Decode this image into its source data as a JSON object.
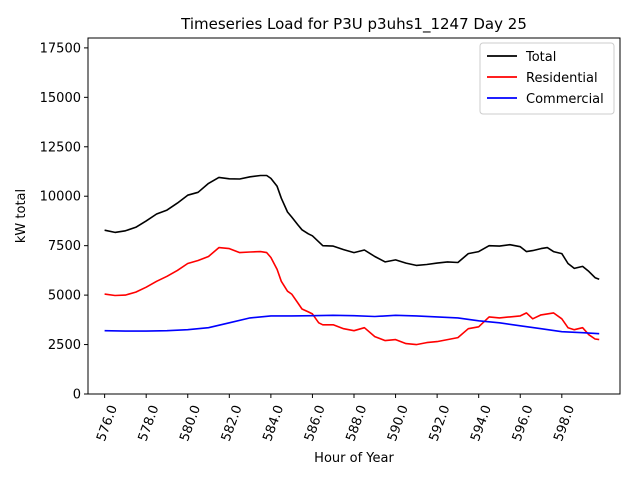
{
  "chart_data": {
    "type": "line",
    "title": "Timeseries Load for P3U p3uhs1_1247  Day 25",
    "xlabel": "Hour of Year",
    "ylabel": "kW total",
    "xlim": [
      575.2,
      600.8
    ],
    "ylim": [
      0,
      18000
    ],
    "xticks": [
      576,
      578,
      580,
      582,
      584,
      586,
      588,
      590,
      592,
      594,
      596,
      598
    ],
    "xtick_labels": [
      "576.0",
      "578.0",
      "580.0",
      "582.0",
      "584.0",
      "586.0",
      "588.0",
      "590.0",
      "592.0",
      "594.0",
      "596.0",
      "598.0"
    ],
    "yticks": [
      0,
      2500,
      5000,
      7500,
      10000,
      12500,
      15000,
      17500
    ],
    "ytick_labels": [
      "0",
      "2500",
      "5000",
      "7500",
      "10000",
      "12500",
      "15000",
      "17500"
    ],
    "grid": false,
    "legend_position": "top-right",
    "series": [
      {
        "name": "Total",
        "color": "#000000",
        "x": [
          576,
          576.5,
          577,
          577.5,
          578,
          578.5,
          579,
          579.5,
          580,
          580.5,
          581,
          581.5,
          582,
          582.5,
          583,
          583.5,
          583.8,
          584,
          584.3,
          584.5,
          584.8,
          585,
          585.3,
          585.5,
          585.8,
          586,
          586.5,
          587,
          587.5,
          588,
          588.5,
          589,
          589.5,
          590,
          590.5,
          591,
          591.5,
          592,
          592.5,
          593,
          593.5,
          594,
          594.5,
          595,
          595.5,
          596,
          596.3,
          596.6,
          597,
          597.3,
          597.6,
          598,
          598.3,
          598.6,
          599,
          599.3,
          599.6,
          599.8
        ],
        "y": [
          8280,
          8170,
          8250,
          8430,
          8750,
          9100,
          9300,
          9650,
          10050,
          10200,
          10650,
          10950,
          10880,
          10870,
          10980,
          11050,
          11050,
          10900,
          10500,
          9900,
          9200,
          8950,
          8550,
          8300,
          8100,
          8000,
          7500,
          7480,
          7300,
          7150,
          7280,
          6950,
          6680,
          6780,
          6620,
          6500,
          6550,
          6620,
          6680,
          6650,
          7100,
          7200,
          7500,
          7480,
          7550,
          7450,
          7200,
          7250,
          7350,
          7400,
          7200,
          7100,
          6600,
          6350,
          6450,
          6200,
          5880,
          5800
        ]
      },
      {
        "name": "Residential",
        "color": "#ff0000",
        "x": [
          576,
          576.5,
          577,
          577.5,
          578,
          578.5,
          579,
          579.5,
          580,
          580.5,
          581,
          581.5,
          582,
          582.5,
          583,
          583.5,
          583.8,
          584,
          584.3,
          584.5,
          584.8,
          585,
          585.3,
          585.5,
          585.8,
          586,
          586.3,
          586.5,
          587,
          587.5,
          588,
          588.5,
          589,
          589.5,
          590,
          590.5,
          591,
          591.5,
          592,
          592.5,
          593,
          593.5,
          594,
          594.5,
          595,
          595.5,
          596,
          596.3,
          596.6,
          597,
          597.3,
          597.6,
          598,
          598.3,
          598.6,
          599,
          599.3,
          599.6,
          599.8
        ],
        "y": [
          5050,
          4980,
          5000,
          5150,
          5400,
          5700,
          5950,
          6250,
          6600,
          6750,
          6950,
          7400,
          7350,
          7150,
          7180,
          7200,
          7150,
          6900,
          6300,
          5700,
          5200,
          5050,
          4600,
          4300,
          4150,
          4050,
          3600,
          3500,
          3500,
          3300,
          3200,
          3350,
          2900,
          2700,
          2750,
          2550,
          2500,
          2600,
          2650,
          2750,
          2850,
          3300,
          3400,
          3900,
          3850,
          3900,
          3950,
          4100,
          3800,
          4000,
          4050,
          4100,
          3800,
          3350,
          3250,
          3350,
          3000,
          2780,
          2750
        ]
      },
      {
        "name": "Commercial",
        "color": "#0000ff",
        "x": [
          576,
          577,
          578,
          579,
          580,
          581,
          582,
          583,
          584,
          585,
          586,
          587,
          588,
          589,
          590,
          591,
          592,
          593,
          594,
          595,
          596,
          597,
          598,
          599,
          599.8
        ],
        "y": [
          3200,
          3180,
          3180,
          3200,
          3250,
          3350,
          3600,
          3850,
          3950,
          3950,
          3960,
          3980,
          3960,
          3920,
          3980,
          3950,
          3900,
          3850,
          3700,
          3600,
          3450,
          3300,
          3150,
          3100,
          3050
        ]
      }
    ]
  }
}
